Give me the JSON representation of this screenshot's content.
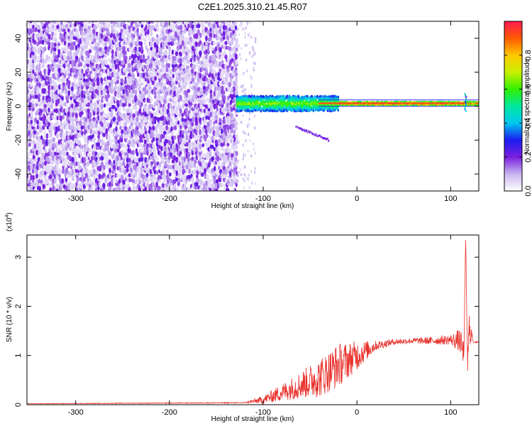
{
  "title": "C2E1.2025.310.21.45.R07",
  "chart_data": [
    {
      "type": "heatmap",
      "name": "spectrogram",
      "xlabel": "Height of straight line (km)",
      "ylabel": "Frequency (Hz)",
      "xlim": [
        -352,
        130
      ],
      "ylim": [
        -50,
        50
      ],
      "xticks": [
        -300,
        -200,
        -100,
        0,
        100
      ],
      "yticks": [
        -40,
        -20,
        0,
        20,
        40
      ],
      "noise_region_x": [
        -352,
        -128
      ],
      "signal_onset_x": -128,
      "signal_line": {
        "x": [
          -128,
          130
        ],
        "center_freq_hz": 1.5
      },
      "secondary_branch": {
        "x": [
          -65,
          -30
        ],
        "freq_hz": [
          -12,
          -20
        ]
      },
      "colorbar": {
        "label": "Normalized spectral amplitude",
        "range": [
          0.0,
          1.0
        ],
        "ticks": [
          0.0,
          0.2,
          0.4,
          0.6,
          0.8
        ],
        "tick_labels": [
          "0.0",
          "0.2",
          "0.4",
          "0.6",
          "0.8"
        ]
      }
    },
    {
      "type": "line",
      "name": "snr",
      "xlabel": "Height of straight line (km)",
      "ylabel": "SNR (10 * v/v)",
      "y_multiplier": "(x10",
      "y_multiplier_exp": "4",
      "y_multiplier_close": ")",
      "xlim": [
        -352,
        130
      ],
      "ylim": [
        0,
        3.45
      ],
      "xticks": [
        -300,
        -200,
        -100,
        0,
        100
      ],
      "yticks": [
        0,
        1,
        2,
        3
      ],
      "series": [
        {
          "name": "SNR",
          "color": "#e8302a",
          "envelope_x": [
            -352,
            -120,
            -100,
            -80,
            -60,
            -40,
            -20,
            0,
            20,
            40,
            60,
            80,
            100,
            110,
            114,
            116,
            118,
            120,
            124,
            130
          ],
          "envelope_y": [
            0.02,
            0.04,
            0.1,
            0.25,
            0.4,
            0.55,
            0.8,
            1.0,
            1.2,
            1.28,
            1.3,
            1.3,
            1.32,
            1.3,
            1.0,
            3.4,
            0.8,
            1.6,
            1.28,
            1.27
          ],
          "noise_amplitude": [
            0.005,
            0.01,
            0.08,
            0.18,
            0.28,
            0.4,
            0.45,
            0.3,
            0.1,
            0.06,
            0.06,
            0.08,
            0.1,
            0.25,
            0.3,
            0.0,
            0.3,
            0.4,
            0.02,
            0.02
          ]
        }
      ]
    }
  ]
}
